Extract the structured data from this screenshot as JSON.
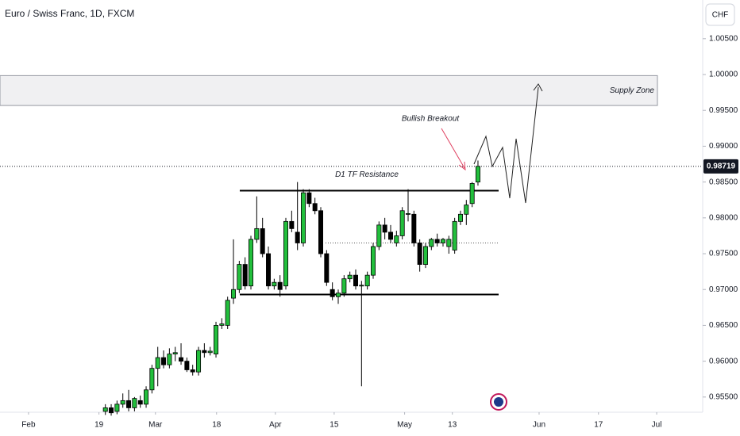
{
  "chart_data": {
    "type": "candlestick",
    "title": "Euro / Swiss Franc, 1D, FXCM",
    "currency": "CHF",
    "last_price": {
      "value": 0.98719,
      "label": "0.98719"
    },
    "up_color": "#22bf3c",
    "down_color": "#000000",
    "grid": false,
    "open": [
      0.953,
      0.9535,
      0.953,
      0.954,
      0.9545,
      0.9535,
      0.9545,
      0.954,
      0.956,
      0.959,
      0.9605,
      0.9595,
      0.961,
      0.9605,
      0.96,
      0.9588,
      0.9585,
      0.9615,
      0.9612,
      0.961,
      0.965,
      0.965,
      0.9688,
      0.97,
      0.9735,
      0.9705,
      0.977,
      0.9785,
      0.975,
      0.9705,
      0.971,
      0.9705,
      0.9795,
      0.978,
      0.9765,
      0.9835,
      0.982,
      0.981,
      0.975,
      0.97,
      0.969,
      0.9695,
      0.9715,
      0.972,
      0.9705,
      0.9705,
      0.972,
      0.976,
      0.979,
      0.978,
      0.9765,
      0.9775,
      0.9805,
      0.9805,
      0.9765,
      0.9735,
      0.976,
      0.977,
      0.9765,
      0.976,
      0.9755,
      0.9795,
      0.9805,
      0.982,
      0.985
    ],
    "high": [
      0.954,
      0.954,
      0.9545,
      0.9555,
      0.956,
      0.955,
      0.9552,
      0.9565,
      0.9595,
      0.962,
      0.9615,
      0.9618,
      0.962,
      0.9625,
      0.9605,
      0.9595,
      0.962,
      0.9625,
      0.962,
      0.9655,
      0.966,
      0.969,
      0.977,
      0.974,
      0.9745,
      0.9775,
      0.983,
      0.98,
      0.976,
      0.9715,
      0.972,
      0.98,
      0.981,
      0.985,
      0.984,
      0.984,
      0.9828,
      0.9815,
      0.9755,
      0.971,
      0.97,
      0.972,
      0.9725,
      0.9728,
      0.9712,
      0.9725,
      0.9765,
      0.9795,
      0.98,
      0.979,
      0.9782,
      0.9815,
      0.984,
      0.981,
      0.977,
      0.9765,
      0.9772,
      0.9778,
      0.9772,
      0.9775,
      0.98,
      0.981,
      0.9825,
      0.985,
      0.988
    ],
    "low": [
      0.9525,
      0.9524,
      0.9526,
      0.9535,
      0.953,
      0.953,
      0.9535,
      0.9535,
      0.9555,
      0.9565,
      0.959,
      0.959,
      0.96,
      0.9595,
      0.9585,
      0.958,
      0.958,
      0.9605,
      0.9608,
      0.9605,
      0.9645,
      0.9645,
      0.968,
      0.9695,
      0.97,
      0.97,
      0.9765,
      0.9745,
      0.97,
      0.97,
      0.969,
      0.97,
      0.978,
      0.9755,
      0.976,
      0.9815,
      0.9805,
      0.9745,
      0.9705,
      0.9685,
      0.968,
      0.969,
      0.971,
      0.97,
      0.9565,
      0.97,
      0.9715,
      0.9755,
      0.977,
      0.9765,
      0.976,
      0.977,
      0.9795,
      0.976,
      0.9725,
      0.973,
      0.9755,
      0.976,
      0.976,
      0.975,
      0.975,
      0.979,
      0.979,
      0.9815,
      0.9845
    ],
    "close": [
      0.9535,
      0.9528,
      0.954,
      0.9545,
      0.9535,
      0.9548,
      0.954,
      0.956,
      0.959,
      0.9605,
      0.9595,
      0.961,
      0.9612,
      0.96,
      0.9588,
      0.9585,
      0.9615,
      0.9612,
      0.9614,
      0.965,
      0.9652,
      0.9685,
      0.97,
      0.9735,
      0.9705,
      0.977,
      0.9785,
      0.975,
      0.9705,
      0.971,
      0.97,
      0.9795,
      0.9785,
      0.9765,
      0.9835,
      0.982,
      0.981,
      0.975,
      0.971,
      0.969,
      0.9695,
      0.9715,
      0.972,
      0.9705,
      0.9706,
      0.972,
      0.976,
      0.979,
      0.978,
      0.977,
      0.9775,
      0.981,
      0.9806,
      0.9765,
      0.9735,
      0.976,
      0.977,
      0.9765,
      0.977,
      0.977,
      0.9795,
      0.9805,
      0.9818,
      0.9848,
      0.98719
    ],
    "xlim": [
      -18.1,
      102.6
    ],
    "xticks": [
      {
        "value": -13.2,
        "label": "Feb"
      },
      {
        "value": -1.1,
        "label": "19"
      },
      {
        "value": 8.6,
        "label": "Mar"
      },
      {
        "value": 19.1,
        "label": "18"
      },
      {
        "value": 29.2,
        "label": "Apr"
      },
      {
        "value": 39.3,
        "label": "15"
      },
      {
        "value": 51.4,
        "label": "May"
      },
      {
        "value": 59.6,
        "label": "13"
      },
      {
        "value": 74.5,
        "label": "Jun"
      },
      {
        "value": 84.7,
        "label": "17"
      },
      {
        "value": 94.7,
        "label": "Jul"
      }
    ],
    "ylim": [
      0.95288,
      1.0104
    ],
    "yticks": [
      {
        "value": 1.005,
        "label": "1.00500"
      },
      {
        "value": 1.0,
        "label": "1.00000"
      },
      {
        "value": 0.995,
        "label": "0.99500"
      },
      {
        "value": 0.99,
        "label": "0.99000"
      },
      {
        "value": 0.985,
        "label": "0.98500"
      },
      {
        "value": 0.98,
        "label": "0.98000"
      },
      {
        "value": 0.975,
        "label": "0.97500"
      },
      {
        "value": 0.97,
        "label": "0.97000"
      },
      {
        "value": 0.965,
        "label": "0.96500"
      },
      {
        "value": 0.96,
        "label": "0.96000"
      },
      {
        "value": 0.955,
        "label": "0.95500"
      }
    ],
    "supply_zone": {
      "label": "Supply Zone",
      "range": [
        0.99568,
        0.99985
      ]
    },
    "resistance": {
      "label": "D1 TF Resistance",
      "value": 0.9838
    },
    "support": {
      "value": 0.9693
    },
    "mid_level": {
      "value": 0.9765
    },
    "annotation": "Bullish Breakout"
  }
}
